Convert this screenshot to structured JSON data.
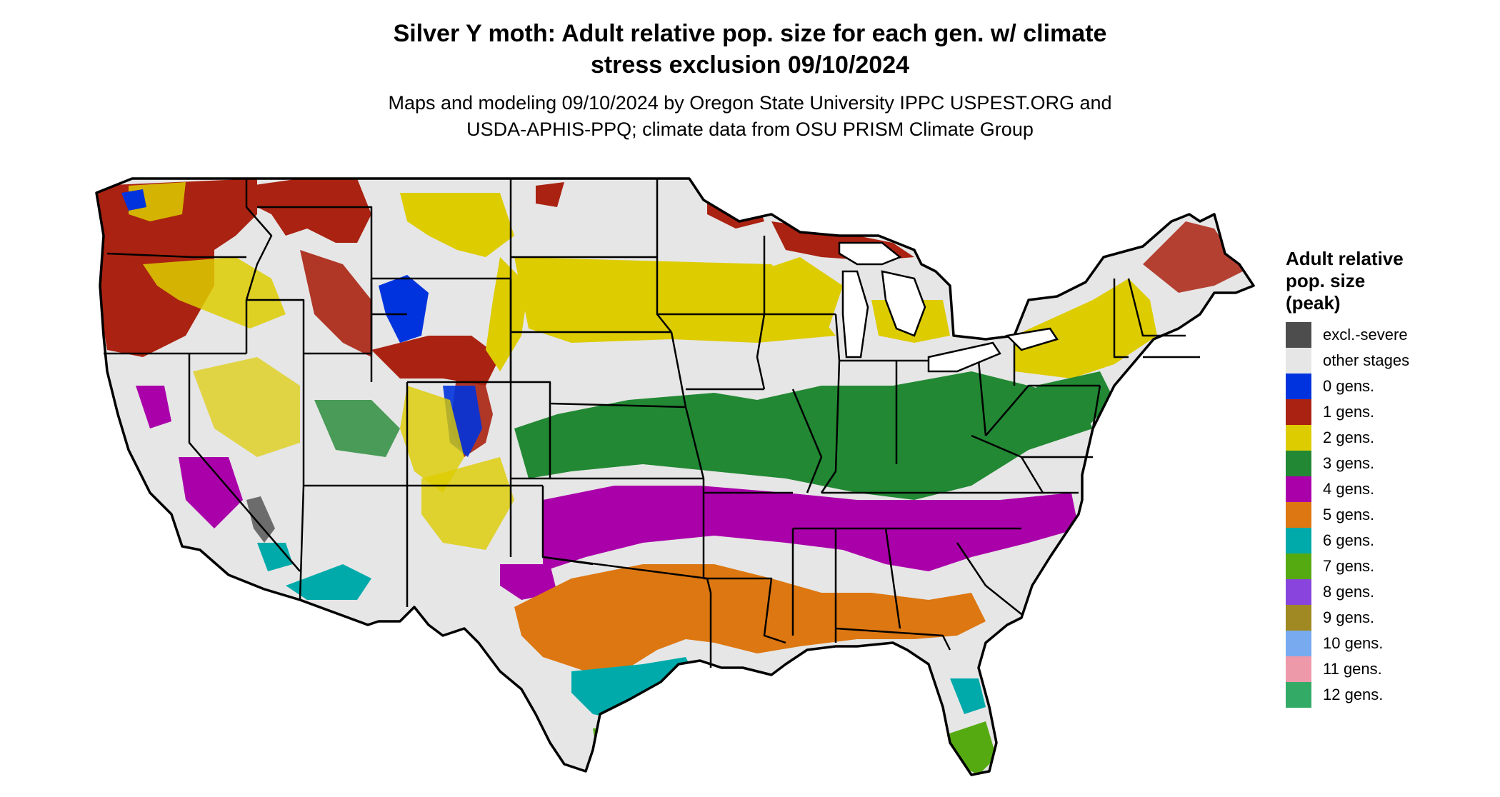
{
  "header": {
    "title_line1": "Silver Y moth: Adult relative pop. size for each gen. w/ climate",
    "title_line2": "stress exclusion 09/10/2024",
    "subtitle_line1": "Maps and modeling 09/10/2024 by Oregon State University IPPC USPEST.ORG and",
    "subtitle_line2": "USDA-APHIS-PPQ; climate data from OSU PRISM Climate Group"
  },
  "legend": {
    "title_line1": "Adult relative",
    "title_line2": "pop. size",
    "title_line3": "(peak)",
    "items": [
      {
        "label": "excl.-severe",
        "color": "#4d4d4d"
      },
      {
        "label": "other stages",
        "color": "#e6e6e6"
      },
      {
        "label": "0 gens.",
        "color": "#0033dd"
      },
      {
        "label": "1 gens.",
        "color": "#aa2211"
      },
      {
        "label": "2 gens.",
        "color": "#ddcc00"
      },
      {
        "label": "3 gens.",
        "color": "#228833"
      },
      {
        "label": "4 gens.",
        "color": "#aa00aa"
      },
      {
        "label": "5 gens.",
        "color": "#dd7711"
      },
      {
        "label": "6 gens.",
        "color": "#00aaaa"
      },
      {
        "label": "7 gens.",
        "color": "#55aa11"
      },
      {
        "label": "8 gens.",
        "color": "#8844dd"
      },
      {
        "label": "9 gens.",
        "color": "#a08822"
      },
      {
        "label": "10 gens.",
        "color": "#77aaee"
      },
      {
        "label": "11 gens.",
        "color": "#ee99aa"
      },
      {
        "label": "12 gens.",
        "color": "#33aa66"
      }
    ]
  },
  "map": {
    "background_color": "#e6e6e6",
    "border_color": "#000000"
  }
}
